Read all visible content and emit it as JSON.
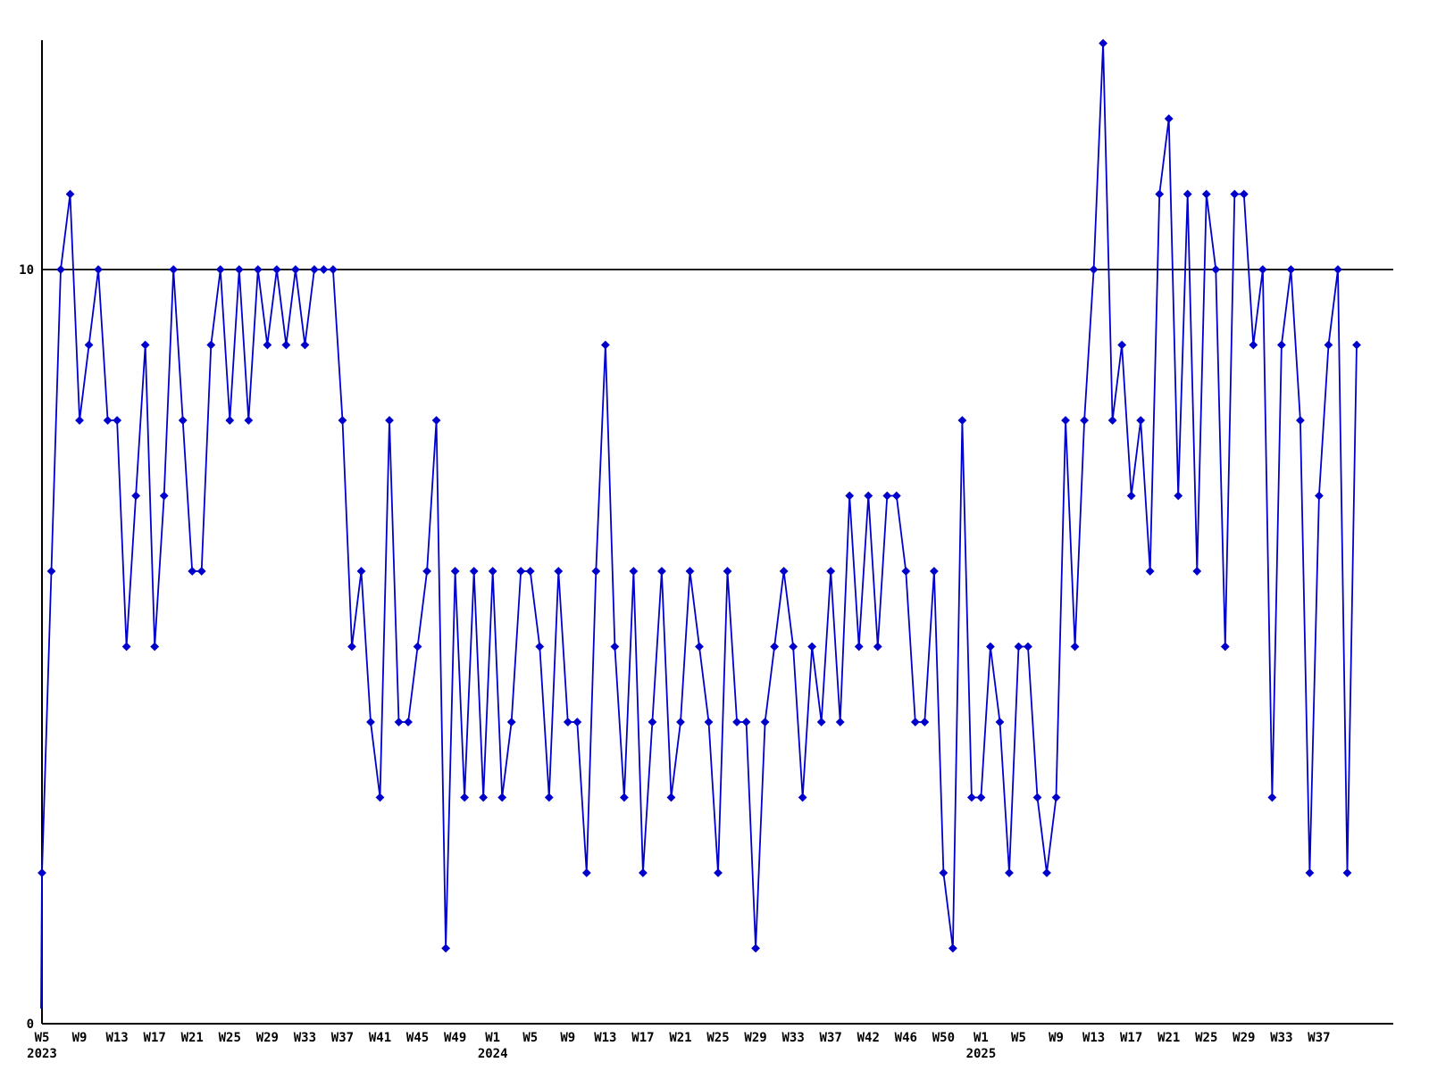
{
  "chart_data": {
    "type": "line",
    "title": "",
    "xlabel": "",
    "ylabel": "",
    "background_color": "#ffffff",
    "line_color": "#0000cc",
    "marker_color": "#0000cc",
    "axis_color": "#000000",
    "text_color": "#000000",
    "marker_shape": "diamond",
    "grid": "off",
    "legend": "none",
    "reference_line_value": 10,
    "ylim": [
      0,
      13.3
    ],
    "y_ticks": [
      {
        "label": "0",
        "value": 0
      },
      {
        "label": "10",
        "value": 10
      }
    ],
    "leading_stub_value": 0.2,
    "x_tick_every": 4,
    "x_tick_labels": [
      "W5",
      "W9",
      "W13",
      "W17",
      "W21",
      "W25",
      "W29",
      "W33",
      "W37",
      "W41",
      "W45",
      "W49",
      "W1",
      "W5",
      "W9",
      "W13",
      "W17",
      "W21",
      "W25",
      "W29",
      "W33",
      "W37",
      "W42",
      "W46",
      "W50",
      "W1",
      "W5",
      "W9",
      "W13",
      "W17",
      "W21",
      "W25",
      "W29",
      "W33",
      "W37"
    ],
    "year_labels": [
      {
        "label": "2023",
        "tick_index": 0
      },
      {
        "label": "2024",
        "tick_index": 12
      },
      {
        "label": "2025",
        "tick_index": 25
      }
    ],
    "values": [
      2,
      6,
      10,
      11,
      8,
      9,
      10,
      8,
      8,
      5,
      7,
      9,
      5,
      7,
      10,
      8,
      6,
      6,
      9,
      10,
      8,
      10,
      8,
      10,
      9,
      10,
      9,
      10,
      9,
      10,
      10,
      10,
      8,
      5,
      6,
      4,
      3,
      8,
      4,
      4,
      5,
      6,
      8,
      1,
      6,
      3,
      6,
      3,
      6,
      3,
      4,
      6,
      6,
      5,
      3,
      6,
      4,
      4,
      2,
      6,
      9,
      5,
      3,
      6,
      2,
      4,
      6,
      3,
      4,
      6,
      5,
      4,
      2,
      6,
      4,
      4,
      1,
      4,
      5,
      6,
      5,
      3,
      5,
      4,
      6,
      4,
      7,
      5,
      7,
      5,
      7,
      7,
      6,
      4,
      4,
      6,
      2,
      1,
      8,
      3,
      3,
      5,
      4,
      2,
      5,
      5,
      3,
      2,
      3,
      8,
      5,
      8,
      10,
      13,
      8,
      9,
      7,
      8,
      6,
      11,
      12,
      7,
      11,
      6,
      11,
      10,
      5,
      11,
      11,
      9,
      10,
      3,
      9,
      10,
      8,
      2,
      7,
      9,
      10,
      2,
      9
    ]
  }
}
